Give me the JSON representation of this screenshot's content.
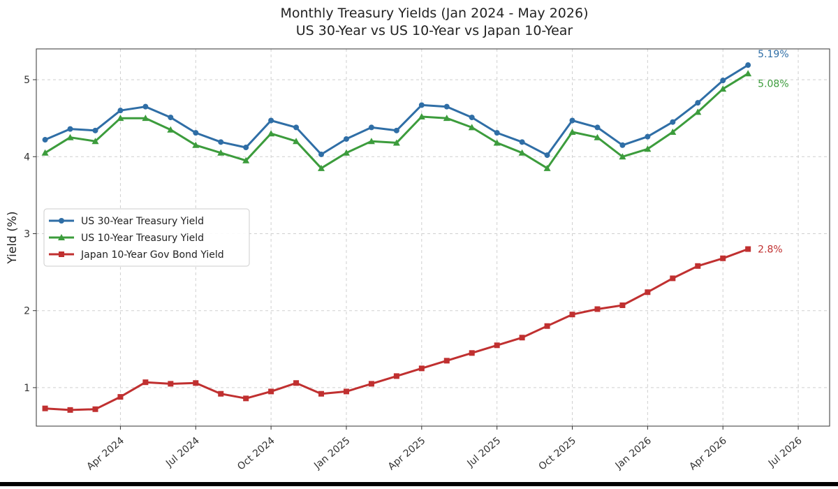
{
  "chart_data": {
    "type": "line",
    "title": "Monthly Treasury Yields (Jan 2024 - May 2026)",
    "subtitle": "US 30-Year vs US 10-Year vs Japan 10-Year",
    "xlabel": "",
    "ylabel": "Yield (%)",
    "ylim": [
      0.5,
      5.4
    ],
    "xlim": [
      "2024-01-01",
      "2026-08-01"
    ],
    "y_ticks": [
      1,
      2,
      3,
      4,
      5
    ],
    "x_tick_labels": [
      "Apr 2024",
      "Jul 2024",
      "Oct 2024",
      "Jan 2025",
      "Apr 2025",
      "Jul 2025",
      "Oct 2025",
      "Jan 2026",
      "Apr 2026",
      "Jul 2026"
    ],
    "x_tick_dates": [
      "2024-04",
      "2024-07",
      "2024-10",
      "2025-01",
      "2025-04",
      "2025-07",
      "2025-10",
      "2026-01",
      "2026-04",
      "2026-07"
    ],
    "grid": true,
    "legend_position": "center-left",
    "x": [
      "2024-01",
      "2024-02",
      "2024-03",
      "2024-04",
      "2024-05",
      "2024-06",
      "2024-07",
      "2024-08",
      "2024-09",
      "2024-10",
      "2024-11",
      "2024-12",
      "2025-01",
      "2025-02",
      "2025-03",
      "2025-04",
      "2025-05",
      "2025-06",
      "2025-07",
      "2025-08",
      "2025-09",
      "2025-10",
      "2025-11",
      "2025-12",
      "2026-01",
      "2026-02",
      "2026-03",
      "2026-04",
      "2026-05"
    ],
    "series": [
      {
        "name": "US 30-Year Treasury Yield",
        "color": "#2f6ea6",
        "marker": "circle",
        "values": [
          4.22,
          4.36,
          4.34,
          4.6,
          4.65,
          4.51,
          4.31,
          4.19,
          4.12,
          4.47,
          4.38,
          4.03,
          4.23,
          4.38,
          4.34,
          4.67,
          4.65,
          4.51,
          4.31,
          4.19,
          4.02,
          4.47,
          4.38,
          4.15,
          4.26,
          4.45,
          4.7,
          4.99,
          5.19
        ],
        "end_label": "5.19%"
      },
      {
        "name": "US 10-Year Treasury Yield",
        "color": "#3c9c3c",
        "marker": "triangle",
        "values": [
          4.05,
          4.25,
          4.2,
          4.5,
          4.5,
          4.35,
          4.15,
          4.05,
          3.95,
          4.3,
          4.2,
          3.85,
          4.05,
          4.2,
          4.18,
          4.52,
          4.5,
          4.38,
          4.18,
          4.05,
          3.85,
          4.32,
          4.25,
          4.0,
          4.1,
          4.32,
          4.58,
          4.88,
          5.08
        ],
        "end_label": "5.08%"
      },
      {
        "name": "Japan 10-Year Gov Bond Yield",
        "color": "#c03030",
        "marker": "square",
        "values": [
          0.73,
          0.71,
          0.72,
          0.88,
          1.07,
          1.05,
          1.06,
          0.92,
          0.86,
          0.95,
          1.06,
          0.92,
          0.95,
          1.05,
          1.15,
          1.25,
          1.35,
          1.45,
          1.55,
          1.65,
          1.8,
          1.95,
          2.02,
          2.07,
          2.24,
          2.42,
          2.58,
          2.68,
          2.8
        ],
        "end_label": "2.8%"
      }
    ]
  }
}
